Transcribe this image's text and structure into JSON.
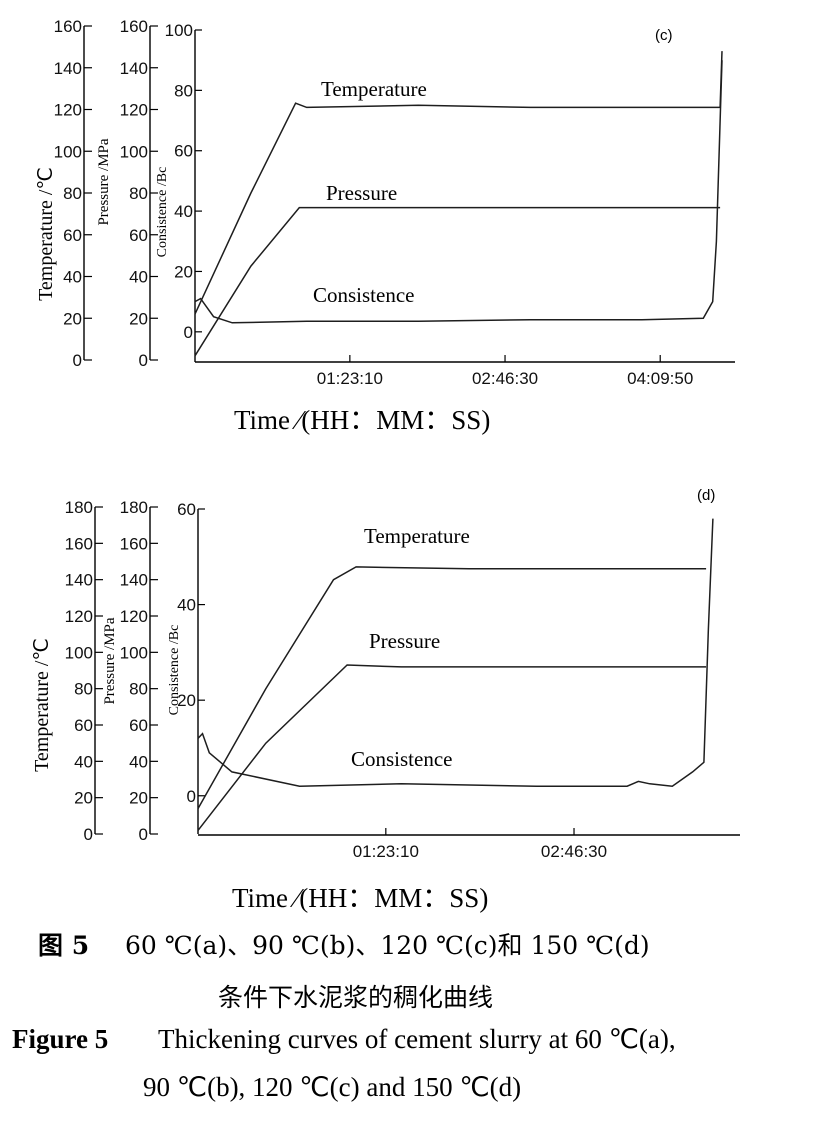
{
  "chart_data": [
    {
      "type": "line",
      "panel_label": "(c)",
      "xlabel": "Time ⁄(HH：MM：SS)",
      "x_ticks": [
        "01:23:10",
        "02:46:30",
        "04:09:50"
      ],
      "xlim": [
        "00:00:00",
        "04:50:00"
      ],
      "axes": [
        {
          "label": "Temperature /℃",
          "ticks": [
            0,
            20,
            40,
            60,
            80,
            100,
            120,
            140,
            160
          ],
          "ylim": [
            0,
            160
          ]
        },
        {
          "label": "Pressure /MPa",
          "ticks": [
            0,
            20,
            40,
            60,
            80,
            100,
            120,
            140,
            160
          ],
          "ylim": [
            0,
            160
          ]
        },
        {
          "label": "Consistence /Bc",
          "ticks": [
            0,
            20,
            40,
            60,
            80,
            100
          ],
          "ylim": [
            -10,
            100
          ]
        }
      ],
      "series": [
        {
          "name": "Temperature",
          "axis": 0,
          "x": [
            "00:00:00",
            "00:30:00",
            "00:54:00",
            "01:00:00",
            "02:00:00",
            "03:00:00",
            "04:00:00",
            "04:40:00",
            "04:42:00",
            "04:43:00"
          ],
          "y": [
            22,
            80,
            123,
            121,
            122,
            121,
            121,
            121,
            121,
            148
          ]
        },
        {
          "name": "Pressure",
          "axis": 1,
          "x": [
            "00:00:00",
            "00:30:00",
            "00:56:00",
            "01:30:00",
            "02:30:00",
            "03:30:00",
            "04:42:00"
          ],
          "y": [
            2,
            45,
            73,
            73,
            73,
            73,
            73
          ]
        },
        {
          "name": "Consistence",
          "axis": 2,
          "x": [
            "00:00:00",
            "00:03:00",
            "00:10:00",
            "00:20:00",
            "01:00:00",
            "02:00:00",
            "03:00:00",
            "04:00:00",
            "04:33:00",
            "04:38:00",
            "04:40:00",
            "04:43:00"
          ],
          "y": [
            10,
            11,
            5,
            3,
            3.5,
            3.5,
            4,
            4,
            4.5,
            10,
            30,
            90
          ]
        }
      ]
    },
    {
      "type": "line",
      "panel_label": "(d)",
      "xlabel": "Time ⁄(HH：MM：SS)",
      "x_ticks": [
        "01:23:10",
        "02:46:30"
      ],
      "xlim": [
        "00:00:00",
        "04:00:00"
      ],
      "axes": [
        {
          "label": "Temperature /℃",
          "ticks": [
            0,
            20,
            40,
            60,
            80,
            100,
            120,
            140,
            160,
            180
          ],
          "ylim": [
            0,
            180
          ]
        },
        {
          "label": "Pressure /MPa",
          "ticks": [
            0,
            20,
            40,
            60,
            80,
            100,
            120,
            140,
            160,
            180
          ],
          "ylim": [
            0,
            180
          ]
        },
        {
          "label": "Consistence /Bc",
          "ticks": [
            0,
            20,
            40,
            60
          ],
          "ylim": [
            -8,
            60
          ]
        }
      ],
      "series": [
        {
          "name": "Temperature",
          "axis": 0,
          "x": [
            "00:00:00",
            "00:30:00",
            "01:00:00",
            "01:10:00",
            "02:00:00",
            "03:00:00",
            "03:45:00"
          ],
          "y": [
            14,
            80,
            140,
            147,
            146,
            146,
            146
          ]
        },
        {
          "name": "Pressure",
          "axis": 1,
          "x": [
            "00:00:00",
            "00:30:00",
            "01:06:00",
            "01:30:00",
            "02:30:00",
            "03:45:00"
          ],
          "y": [
            2,
            50,
            93,
            92,
            92,
            92
          ]
        },
        {
          "name": "Consistence",
          "axis": 2,
          "x": [
            "00:00:00",
            "00:02:00",
            "00:05:00",
            "00:15:00",
            "00:45:00",
            "01:30:00",
            "02:30:00",
            "03:10:00",
            "03:15:00",
            "03:20:00",
            "03:30:00",
            "03:39:00",
            "03:44:00",
            "03:46:00",
            "03:48:00"
          ],
          "y": [
            12,
            13,
            9,
            5,
            2,
            2.5,
            2,
            2,
            3,
            2.5,
            2,
            5,
            7,
            35,
            58
          ]
        }
      ]
    }
  ],
  "caption": {
    "zh_label": "图 5",
    "zh_line1": "60 ℃(a)、90 ℃(b)、120 ℃(c)和 150 ℃(d)",
    "zh_line2": "条件下水泥浆的稠化曲线",
    "en_label": "Figure 5",
    "en_line1": "Thickening curves of cement slurry at 60 ℃(a),",
    "en_line2": "90 ℃(b), 120 ℃(c) and 150 ℃(d)"
  }
}
